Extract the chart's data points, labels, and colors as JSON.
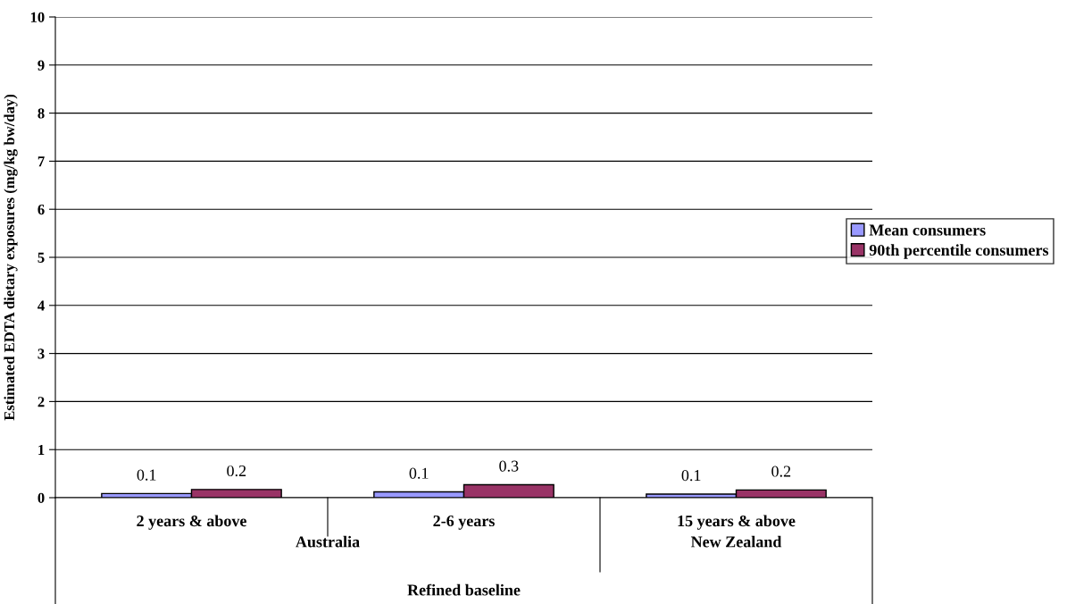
{
  "chart_data": {
    "type": "bar",
    "ylabel": "Estimated EDTA dietary exposures (mg/kg bw/day)",
    "categories": [
      "2 years & above",
      "2-6 years",
      "15 years & above"
    ],
    "series": [
      {
        "name": "Mean consumers",
        "color": "#9999ff",
        "values": [
          0.085,
          0.12,
          0.075
        ],
        "value_labels": [
          "0.1",
          "0.1",
          "0.1"
        ]
      },
      {
        "name": "90th percentile consumers",
        "color": "#993366",
        "values": [
          0.17,
          0.27,
          0.16
        ],
        "value_labels": [
          "0.2",
          "0.3",
          "0.2"
        ]
      }
    ],
    "annotations": [
      "Australia",
      "New Zealand",
      "Refined baseline"
    ],
    "ylim": [
      0,
      10
    ],
    "yticks": [
      0,
      1,
      2,
      3,
      4,
      5,
      6,
      7,
      8,
      9,
      10
    ],
    "grid": "y",
    "legend": "right"
  }
}
